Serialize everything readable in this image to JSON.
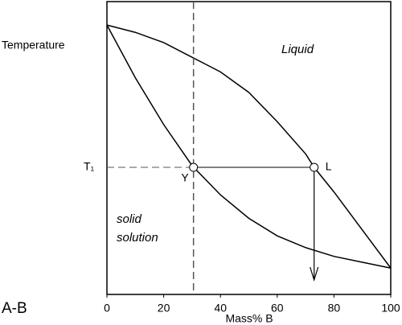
{
  "chart_data": {
    "type": "phase-diagram",
    "title": "A-B",
    "x_label": "Mass% B",
    "y_label": "Temperature",
    "xlim": [
      0,
      100
    ],
    "xticks": [
      0,
      20,
      40,
      60,
      80,
      100
    ],
    "ylim": [
      0,
      100
    ],
    "series": [
      {
        "color": "#000000",
        "x": [
          0,
          10,
          20,
          30,
          40,
          50,
          60,
          70,
          73,
          80,
          90,
          100
        ],
        "values": [
          92,
          89.5,
          86,
          81,
          76,
          69,
          59,
          48,
          43.4,
          35,
          22,
          9
        ]
      },
      {
        "color": "#000000",
        "x": [
          0,
          5,
          10,
          20,
          30,
          40,
          50,
          60,
          70,
          80,
          90,
          100
        ],
        "values": [
          92,
          83,
          74,
          58,
          44,
          34,
          26,
          20,
          16,
          13,
          11,
          9
        ]
      }
    ],
    "tie_line": {
      "label": "T₁",
      "y": 43.4,
      "x": [
        30.5,
        73
      ],
      "point_labels": [
        "Y",
        "L"
      ]
    },
    "regions": [
      {
        "label": "Liquid"
      },
      {
        "label": [
          "solid",
          "solution"
        ]
      }
    ]
  }
}
